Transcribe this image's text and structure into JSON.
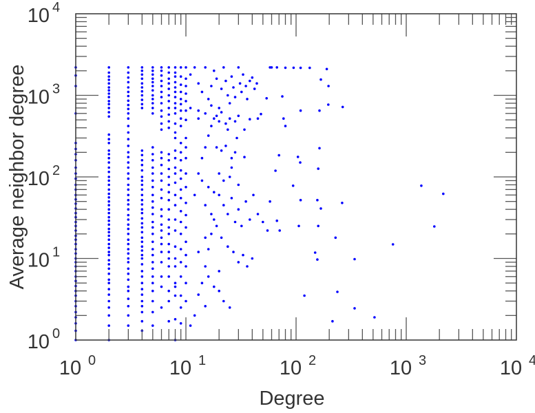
{
  "chart_data": {
    "type": "scatter",
    "title": "",
    "xlabel": "Degree",
    "ylabel": "Average neighbor degree",
    "xscale": "log",
    "yscale": "log",
    "xlim": [
      1,
      10000
    ],
    "ylim": [
      1,
      10000
    ],
    "x_ticks": [
      {
        "base": "10",
        "exp": "0",
        "value": 1
      },
      {
        "base": "10",
        "exp": "1",
        "value": 10
      },
      {
        "base": "10",
        "exp": "2",
        "value": 100
      },
      {
        "base": "10",
        "exp": "3",
        "value": 1000
      },
      {
        "base": "10",
        "exp": "4",
        "value": 10000
      }
    ],
    "y_ticks": [
      {
        "base": "10",
        "exp": "0",
        "value": 1
      },
      {
        "base": "10",
        "exp": "1",
        "value": 10
      },
      {
        "base": "10",
        "exp": "2",
        "value": 100
      },
      {
        "base": "10",
        "exp": "3",
        "value": 1000
      },
      {
        "base": "10",
        "exp": "4",
        "value": 10000
      }
    ],
    "grid": false,
    "marker_color": "#0000ff",
    "columns": [
      {
        "x": 1,
        "y": [
          1,
          1.3,
          1.6,
          1.9,
          2.2,
          2.6,
          3,
          3.5,
          4,
          4.6,
          5.3,
          6,
          7,
          8,
          9,
          10,
          11.5,
          13,
          15,
          17,
          19,
          22,
          25,
          28,
          32,
          36,
          41,
          47,
          53,
          60,
          70,
          80,
          95,
          110,
          130,
          160,
          190,
          220,
          260,
          600,
          1300,
          1750,
          2200
        ]
      },
      {
        "x": 2,
        "y": [
          1,
          1.5,
          2,
          2.5,
          3,
          3.6,
          4.2,
          5,
          5.5,
          6.5,
          7.5,
          8.5,
          9.5,
          11,
          12,
          13.5,
          15,
          17,
          19,
          21,
          23,
          26,
          29,
          32,
          36,
          40,
          45,
          50,
          56,
          62,
          70,
          80,
          90,
          100,
          115,
          130,
          150,
          170,
          190,
          210,
          260,
          290,
          330,
          550,
          620,
          700,
          780,
          850,
          950,
          1050,
          1150,
          1250,
          1400,
          1550,
          1700,
          1900,
          2200
        ]
      },
      {
        "x": 3,
        "y": [
          1.5,
          2,
          2.6,
          3.2,
          4,
          4.5,
          5.5,
          6.5,
          7.5,
          9,
          10,
          11.5,
          13,
          15,
          17,
          20,
          23,
          26,
          30,
          34,
          40,
          46,
          52,
          60,
          70,
          80,
          95,
          110,
          130,
          150,
          175,
          200,
          240,
          290,
          350,
          420,
          520,
          600,
          680,
          760,
          860,
          980,
          1100,
          1250,
          1450,
          1650,
          1900,
          2200
        ]
      },
      {
        "x": 4,
        "y": [
          1.3,
          1.7,
          2.2,
          2.6,
          3,
          3.6,
          4.2,
          5,
          6,
          7,
          8.5,
          10,
          11,
          12.5,
          14,
          16,
          18,
          21,
          24,
          27,
          31,
          36,
          40,
          46,
          52,
          60,
          70,
          80,
          90,
          100,
          120,
          140,
          160,
          185,
          210,
          700,
          780,
          880,
          1000,
          1120,
          1250,
          1400,
          1600,
          1800,
          2000,
          2200
        ]
      },
      {
        "x": 5,
        "y": [
          1.5,
          2.2,
          3,
          4,
          5,
          6,
          7.5,
          9,
          11,
          13,
          16,
          20,
          24,
          28,
          35,
          42,
          50,
          60,
          75,
          90,
          110,
          130,
          160,
          190,
          230,
          600,
          700,
          800,
          900,
          1000,
          1150,
          1300,
          1450,
          1600,
          1800,
          2000,
          2200
        ]
      },
      {
        "x": 6,
        "y": [
          2.5,
          4.5,
          6,
          9,
          12,
          15,
          18,
          22,
          26,
          33,
          40,
          55,
          70,
          90,
          110,
          140,
          170,
          200,
          380,
          450,
          550,
          650,
          800,
          950,
          1100,
          1300,
          1500,
          1750,
          2000,
          2200
        ]
      },
      {
        "x": 7,
        "y": [
          1.7,
          3,
          4,
          6,
          8,
          10,
          12,
          15,
          20,
          24,
          30,
          40,
          52,
          65,
          80,
          100,
          125,
          160,
          190,
          400,
          480,
          580,
          700,
          850,
          1000,
          1200,
          1400,
          1600,
          1900,
          2200
        ]
      },
      {
        "x": 8,
        "y": [
          1,
          1.8,
          3.5,
          4.5,
          5,
          8,
          10,
          14,
          22,
          30,
          45,
          60,
          85,
          110,
          130,
          170,
          210,
          300,
          350,
          450,
          600,
          700,
          800,
          950,
          1100,
          1250,
          1450,
          1700,
          1900,
          2200
        ]
      },
      {
        "x": 9,
        "y": [
          1.6,
          2.5,
          3.5,
          6,
          9,
          13,
          20,
          28,
          38,
          55,
          70,
          95,
          120,
          160,
          200,
          260,
          420,
          520,
          650,
          780,
          900,
          1100,
          1350,
          1700,
          2200
        ]
      },
      {
        "x": 10,
        "y": [
          3,
          5,
          8,
          11,
          16,
          24,
          34,
          48,
          75,
          110,
          170,
          230,
          300,
          500,
          650,
          850,
          1050,
          1300,
          1600,
          2200
        ]
      }
    ],
    "points": [
      [
        11,
        1.5
      ],
      [
        12,
        2
      ],
      [
        13,
        3.6
      ],
      [
        14,
        5
      ],
      [
        15,
        8
      ],
      [
        16,
        13
      ],
      [
        17,
        20
      ],
      [
        18,
        30
      ],
      [
        12,
        60
      ],
      [
        13,
        110
      ],
      [
        14,
        170
      ],
      [
        15,
        230
      ],
      [
        16,
        320
      ],
      [
        17,
        420
      ],
      [
        18,
        520
      ],
      [
        11,
        1800
      ],
      [
        12,
        2200
      ],
      [
        13,
        1400
      ],
      [
        14,
        1100
      ],
      [
        15,
        2200
      ],
      [
        16,
        900
      ],
      [
        17,
        1300
      ],
      [
        18,
        2000
      ],
      [
        19,
        1600
      ],
      [
        20,
        700
      ],
      [
        21,
        1200
      ],
      [
        22,
        2200
      ],
      [
        23,
        1500
      ],
      [
        24,
        1000
      ],
      [
        25,
        800
      ],
      [
        26,
        1700
      ],
      [
        27,
        1250
      ],
      [
        28,
        950
      ],
      [
        30,
        2200
      ],
      [
        31,
        1400
      ],
      [
        32,
        1100
      ],
      [
        33,
        1800
      ],
      [
        35,
        1300
      ],
      [
        36,
        900
      ],
      [
        38,
        1500
      ],
      [
        40,
        1650
      ],
      [
        42,
        1200
      ],
      [
        44,
        1400
      ],
      [
        11,
        700
      ],
      [
        13,
        650
      ],
      [
        15,
        600
      ],
      [
        17,
        750
      ],
      [
        19,
        560
      ],
      [
        21,
        620
      ],
      [
        23,
        450
      ],
      [
        25,
        520
      ],
      [
        28,
        480
      ],
      [
        30,
        560
      ],
      [
        13,
        520
      ],
      [
        20,
        480
      ],
      [
        24,
        380
      ],
      [
        19,
        230
      ],
      [
        21,
        210
      ],
      [
        23,
        240
      ],
      [
        26,
        170
      ],
      [
        28,
        200
      ],
      [
        25,
        100
      ],
      [
        29,
        300
      ],
      [
        34,
        380
      ],
      [
        34,
        175
      ],
      [
        38,
        510
      ],
      [
        45,
        520
      ],
      [
        48,
        590
      ],
      [
        54,
        920
      ],
      [
        75,
        970
      ],
      [
        58,
        2200
      ],
      [
        60,
        2200
      ],
      [
        67,
        2200
      ],
      [
        80,
        2180
      ],
      [
        95,
        2180
      ],
      [
        110,
        2170
      ],
      [
        133,
        2170
      ],
      [
        190,
        2100
      ],
      [
        168,
        1560
      ],
      [
        197,
        1300
      ],
      [
        196,
        770
      ],
      [
        265,
        720
      ],
      [
        110,
        650
      ],
      [
        163,
        650
      ],
      [
        80,
        420
      ],
      [
        77,
        520
      ],
      [
        20,
        60
      ],
      [
        22,
        45
      ],
      [
        24,
        35
      ],
      [
        26,
        55
      ],
      [
        28,
        28
      ],
      [
        30,
        40
      ],
      [
        32,
        25
      ],
      [
        35,
        50
      ],
      [
        38,
        30
      ],
      [
        41,
        60
      ],
      [
        45,
        35
      ],
      [
        50,
        28
      ],
      [
        55,
        22
      ],
      [
        15,
        45
      ],
      [
        17,
        35
      ],
      [
        19,
        25
      ],
      [
        21,
        18
      ],
      [
        24,
        14
      ],
      [
        27,
        12
      ],
      [
        30,
        9
      ],
      [
        33,
        11
      ],
      [
        36,
        8
      ],
      [
        40,
        10
      ],
      [
        14,
        90
      ],
      [
        16,
        75
      ],
      [
        18,
        65
      ],
      [
        20,
        110
      ],
      [
        22,
        90
      ],
      [
        26,
        130
      ],
      [
        30,
        80
      ],
      [
        13,
        12
      ],
      [
        15,
        18
      ],
      [
        16,
        6
      ],
      [
        18,
        4.5
      ],
      [
        20,
        7
      ],
      [
        22,
        3
      ],
      [
        25,
        2.5
      ],
      [
        15,
        2.6
      ],
      [
        20,
        4
      ],
      [
        70,
        184
      ],
      [
        65,
        119
      ],
      [
        104,
        176
      ],
      [
        109,
        150
      ],
      [
        159,
        126
      ],
      [
        163,
        225
      ],
      [
        94,
        78
      ],
      [
        58,
        50
      ],
      [
        110,
        52
      ],
      [
        156,
        52
      ],
      [
        168,
        41
      ],
      [
        262,
        48
      ],
      [
        67,
        29
      ],
      [
        71,
        22
      ],
      [
        106,
        25
      ],
      [
        159,
        25
      ],
      [
        228,
        18
      ],
      [
        149,
        11.8
      ],
      [
        156,
        9.7
      ],
      [
        119,
        3.5
      ],
      [
        237,
        3.9
      ],
      [
        214,
        1.7
      ],
      [
        340,
        2.45
      ],
      [
        515,
        1.9
      ],
      [
        340,
        9.8
      ],
      [
        757,
        14.9
      ],
      [
        1370,
        78
      ],
      [
        2170,
        62
      ],
      [
        1800,
        24.7
      ]
    ]
  }
}
